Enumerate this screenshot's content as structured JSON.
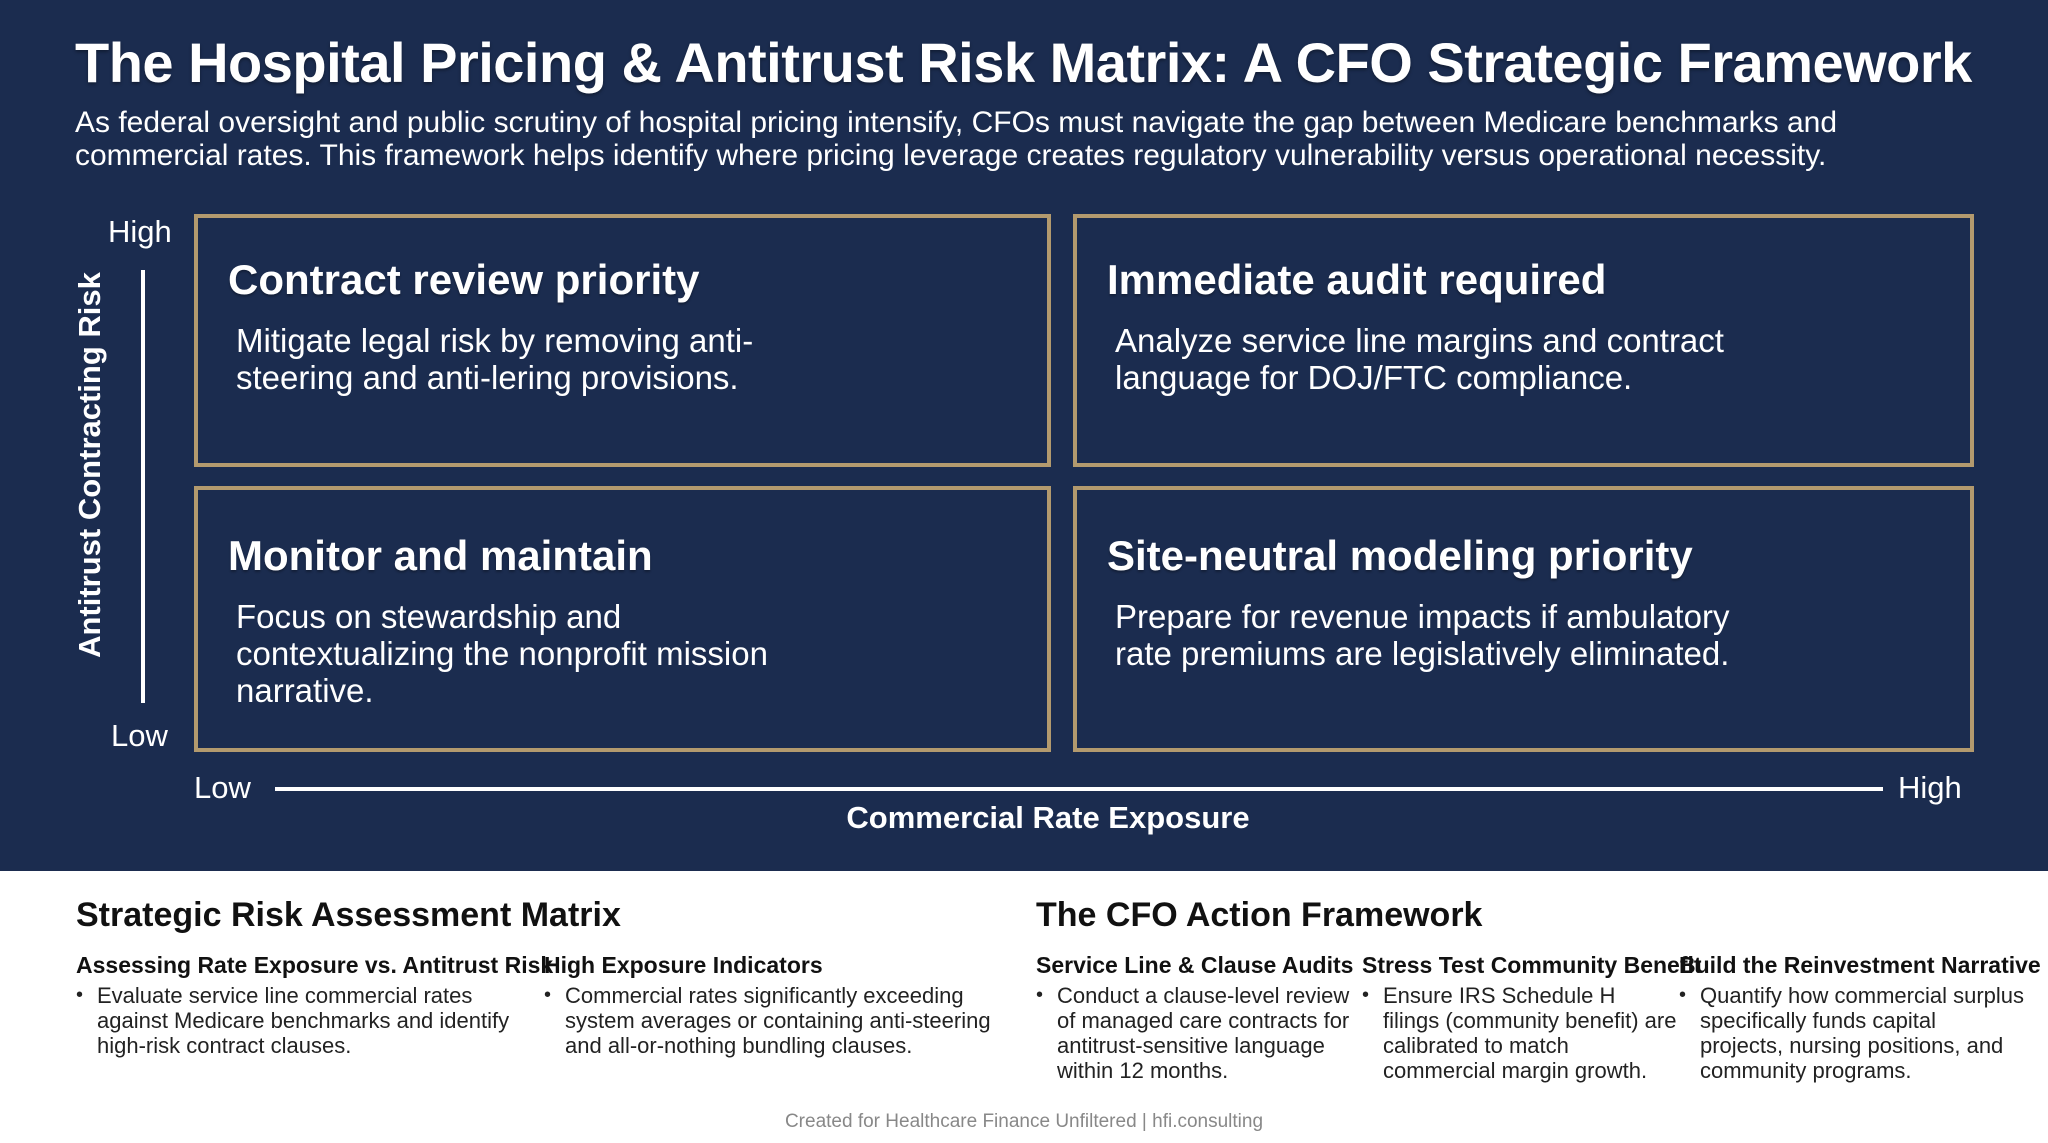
{
  "title": "The Hospital Pricing & Antitrust Risk Matrix: A CFO Strategic Framework",
  "subtitle": "As federal oversight and public scrutiny of hospital pricing intensify, CFOs must navigate the gap between Medicare benchmarks and commercial rates. This framework helps identify where pricing leverage creates regulatory vulnerability versus operational necessity.",
  "matrix": {
    "y_axis": {
      "title": "Antitrust Contracting Risk",
      "high": "High",
      "low": "Low"
    },
    "x_axis": {
      "title": "Commercial Rate Exposure",
      "low": "Low",
      "high": "High"
    },
    "quadrants": {
      "top_left": {
        "title": "Contract review priority",
        "description": "Mitigate legal risk by removing anti-steering and anti-lering provisions."
      },
      "top_right": {
        "title": "Immediate audit required",
        "description": "Analyze service line margins and contract language for DOJ/FTC compliance."
      },
      "bottom_left": {
        "title": "Monitor and maintain",
        "description": "Focus on stewardship and contextualizing the nonprofit mission narrative."
      },
      "bottom_right": {
        "title": "Site-neutral modeling priority",
        "description": "Prepare for revenue impacts if ambulatory rate premiums are legislatively eliminated."
      }
    }
  },
  "assessment": {
    "title": "Strategic Risk Assessment Matrix",
    "columns": [
      {
        "heading": "Assessing Rate Exposure vs. Antitrust Risk",
        "bullet": "Evaluate service line commercial rates against Medicare benchmarks and identify high-risk contract clauses."
      },
      {
        "heading": "High Exposure Indicators",
        "bullet": "Commercial rates significantly exceeding system averages or containing anti-steering and all-or-nothing bundling clauses."
      }
    ]
  },
  "action": {
    "title": "The CFO Action Framework",
    "columns": [
      {
        "heading": "Service Line & Clause Audits",
        "bullet": "Conduct a clause-level review of managed care contracts for antitrust-sensitive language within 12 months."
      },
      {
        "heading": "Stress Test Community Benefit",
        "bullet": "Ensure IRS Schedule H filings (community benefit) are calibrated to match commercial margin growth."
      },
      {
        "heading": "Build the Reinvestment Narrative",
        "bullet": "Quantify how commercial surplus specifically funds capital projects, nursing positions, and community programs."
      }
    ]
  },
  "footer": "Created for Healthcare Finance Unfiltered | hfi.consulting",
  "colors": {
    "navy": "#1b2c4f",
    "gold_border": "#b39a6e",
    "text_light": "#ffffff",
    "text_dark": "#111111"
  }
}
